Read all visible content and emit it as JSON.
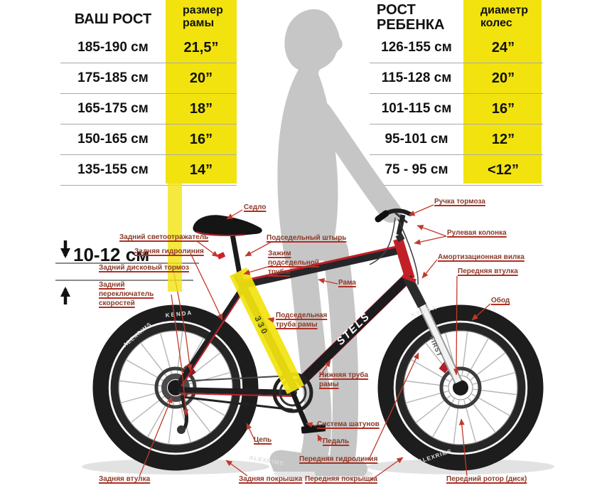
{
  "adult_chart": {
    "header_height": "ВАШ РОСТ",
    "header_size": "размер рамы",
    "rows": [
      {
        "h": "185-190 см",
        "v": "21,5”"
      },
      {
        "h": "175-185 см",
        "v": "20”"
      },
      {
        "h": "165-175 см",
        "v": "18”"
      },
      {
        "h": "150-165 см",
        "v": "16”"
      },
      {
        "h": "135-155 см",
        "v": "14”"
      }
    ]
  },
  "child_chart": {
    "header_height": "РОСТ РЕБЕНКА",
    "header_size": "диаметр колес",
    "rows": [
      {
        "h": "126-155 см",
        "v": "24”"
      },
      {
        "h": "115-128 см",
        "v": "20”"
      },
      {
        "h": "101-115 см",
        "v": "16”"
      },
      {
        "h": "95-101 см",
        "v": "12”"
      },
      {
        "h": "75 - 95 см",
        "v": "<12”"
      }
    ]
  },
  "measurement": {
    "standover": "10-12 см"
  },
  "labels": {
    "rear_reflector": "Задний светоотражатель",
    "rear_hydroline": "Задняя гидролиния",
    "rear_disc_brake": "Задний дисковый тормоз",
    "rear_derailleur": "Задний переключатель скоростей",
    "saddle": "Седло",
    "seatpost": "Подседельный штырь",
    "seat_clamp": "Зажим подседельной трубы",
    "frame": "Рама",
    "seat_tube": "Подседельная труба рамы",
    "brake_lever": "Ручка тормоза",
    "headset": "Рулевая колонка",
    "suspension_fork": "Амортизационная вилка",
    "front_hub": "Передняя втулка",
    "rim": "Обод",
    "down_tube": "Нижняя труба рамы",
    "crankset": "Система шатунов",
    "pedal": "Педаль",
    "chain": "Цепь",
    "rear_hub": "Задняя втулка",
    "rear_tire": "Задняя покрышка",
    "front_hydroline": "Передняя гидролиния",
    "front_tire": "Передняя покрышка",
    "front_rotor": "Передний ротор (диск)"
  },
  "decals": {
    "frame": "STELS",
    "tire": "KENDA",
    "rim": "ALEXRIMS",
    "fork": "FIRST",
    "seat_tube": "330"
  },
  "colors": {
    "highlight": "#f2e30f",
    "label_text": "#8a3a2a",
    "leader_line": "#c0392b",
    "frame_red": "#c22027",
    "silhouette": "#c6c6c6"
  }
}
